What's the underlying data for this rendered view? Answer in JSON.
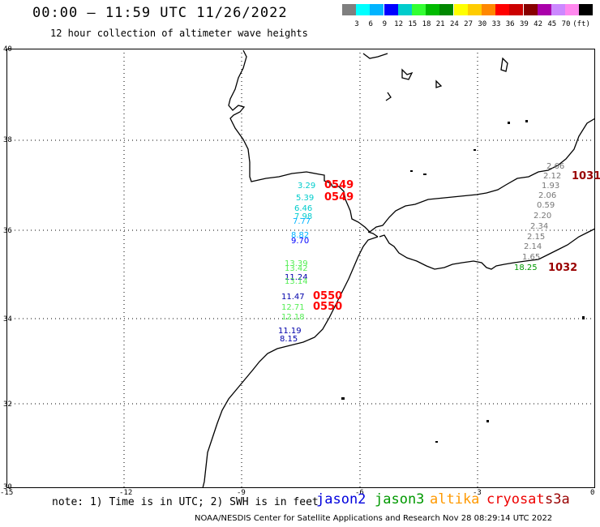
{
  "header": {
    "title": "00:00 — 11:59 UTC 11/26/2022",
    "subtitle": "12 hour collection of altimeter wave heights"
  },
  "scale": {
    "colors": [
      "#7f7f7f",
      "#00ffff",
      "#00b4ff",
      "#0000ff",
      "#00cccc",
      "#33ff33",
      "#00bb00",
      "#008800",
      "#ffff00",
      "#ffcc00",
      "#ff8800",
      "#ff0000",
      "#cc0000",
      "#880000",
      "#aa00aa",
      "#cc88ff",
      "#ff88ee",
      "#000000"
    ],
    "labels": [
      "3",
      "6",
      "9",
      "12",
      "15",
      "18",
      "21",
      "24",
      "27",
      "30",
      "33",
      "36",
      "39",
      "42",
      "45",
      "70",
      "(ft)"
    ]
  },
  "axes": {
    "lat_labels": [
      "40",
      "38",
      "36",
      "34",
      "32",
      "30"
    ],
    "lon_labels": [
      "-15",
      "-12",
      "-9",
      "-6",
      "-3",
      "0"
    ]
  },
  "readings": [
    {
      "text": "3.29",
      "color": "#00cccc"
    },
    {
      "text": "5.39",
      "color": "#00cccc"
    },
    {
      "text": "6.46",
      "color": "#00cccc"
    },
    {
      "text": "7.98",
      "color": "#00cccc"
    },
    {
      "text": "7.77",
      "color": "#00b4ff"
    },
    {
      "text": "8.82",
      "color": "#00b4ff"
    },
    {
      "text": "9.70",
      "color": "#0000ff"
    },
    {
      "text": "13.39",
      "color": "#55ee55"
    },
    {
      "text": "13.42",
      "color": "#55ee55"
    },
    {
      "text": "11.24",
      "color": "#0000aa"
    },
    {
      "text": "13.14",
      "color": "#55ee55"
    },
    {
      "text": "11.47",
      "color": "#0000aa"
    },
    {
      "text": "12.71",
      "color": "#55ee55"
    },
    {
      "text": "12.18",
      "color": "#55ee55"
    },
    {
      "text": "11.19",
      "color": "#0000aa"
    },
    {
      "text": "8.15",
      "color": "#0000aa"
    },
    {
      "text": "2.66",
      "color": "#777777"
    },
    {
      "text": "2.12",
      "color": "#777777"
    },
    {
      "text": "1.93",
      "color": "#777777"
    },
    {
      "text": "2.06",
      "color": "#777777"
    },
    {
      "text": "0.59",
      "color": "#777777"
    },
    {
      "text": "2.20",
      "color": "#777777"
    },
    {
      "text": "2.34",
      "color": "#777777"
    },
    {
      "text": "2.15",
      "color": "#777777"
    },
    {
      "text": "2.14",
      "color": "#777777"
    },
    {
      "text": "1.65",
      "color": "#777777"
    },
    {
      "text": "18.25",
      "color": "#009900"
    }
  ],
  "pass_times": [
    {
      "text": "0549",
      "color": "#ff0000"
    },
    {
      "text": "0549",
      "color": "#ff0000"
    },
    {
      "text": "0550",
      "color": "#ff0000"
    },
    {
      "text": "0550",
      "color": "#ff0000"
    },
    {
      "text": "1031",
      "color": "#990000"
    },
    {
      "text": "1032",
      "color": "#990000"
    }
  ],
  "footer": {
    "note": "note: 1) Time is in UTC; 2) SWH is in feet",
    "satellites": [
      {
        "name": "jason2",
        "color": "#0000dd"
      },
      {
        "name": "jason3",
        "color": "#009900"
      },
      {
        "name": "altika",
        "color": "#ff9900"
      },
      {
        "name": "cryosat",
        "color": "#ee0000"
      },
      {
        "name": "s3a",
        "color": "#990000"
      }
    ],
    "credit": "NOAA/NESDIS Center for Satellite Applications and Research     Nov 28 08:29:14 UTC 2022"
  }
}
